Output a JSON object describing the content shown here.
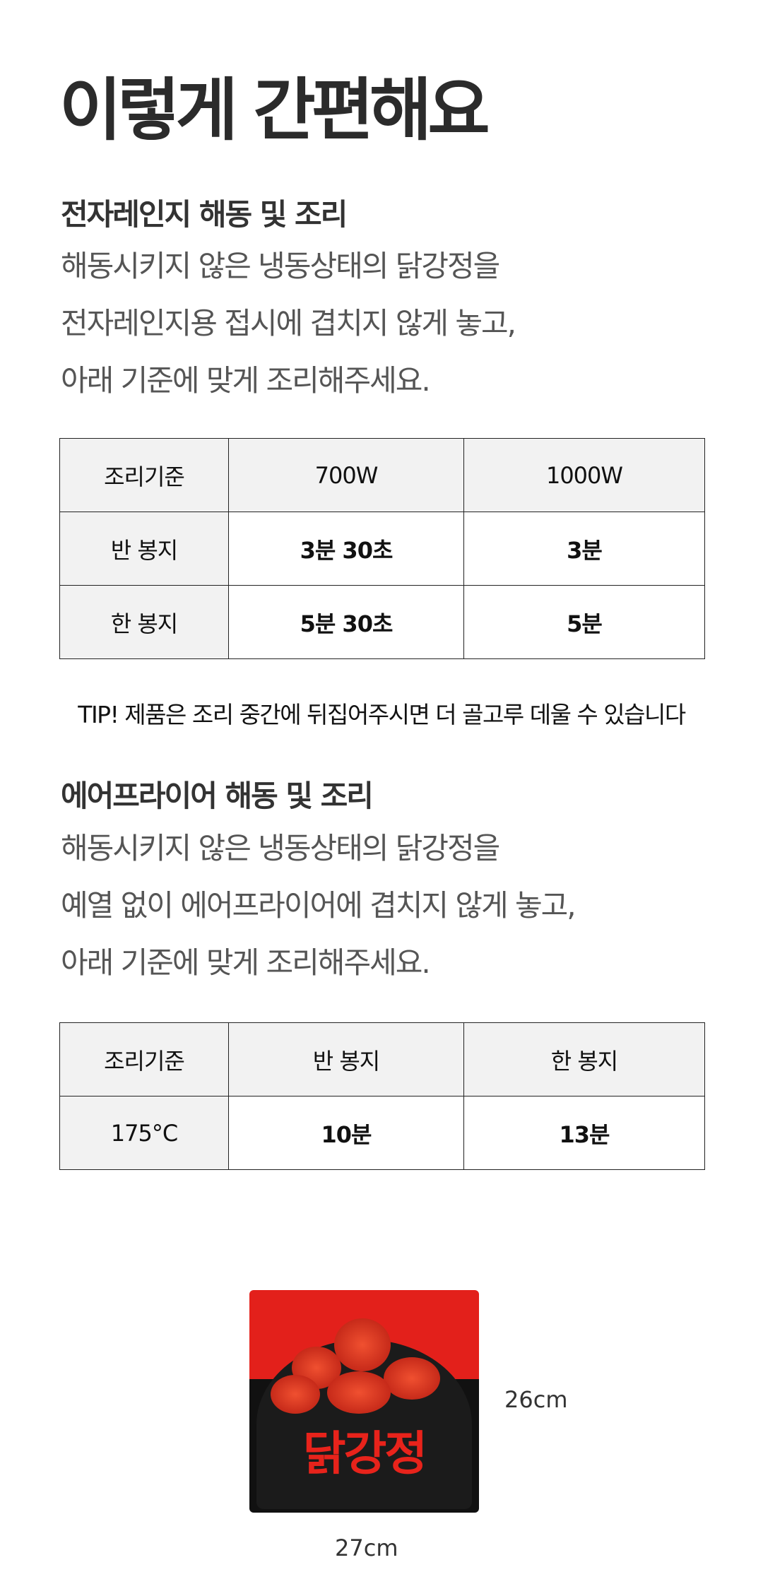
{
  "title": "이렇게 간편해요",
  "microwave": {
    "heading": "전자레인지 해동 및 조리",
    "lines": [
      "해동시키지 않은 냉동상태의 닭강정을",
      "전자레인지용 접시에 겹치지 않게 놓고,",
      "아래 기준에 맞게 조리해주세요."
    ],
    "table": {
      "header": [
        "조리기준",
        "700W",
        "1000W"
      ],
      "rows": [
        [
          "반 봉지",
          "3분 30초",
          "3분"
        ],
        [
          "한 봉지",
          "5분 30초",
          "5분"
        ]
      ]
    }
  },
  "tip": "TIP! 제품은 조리 중간에 뒤집어주시면 더 골고루 데울 수 있습니다",
  "airfryer": {
    "heading": "에어프라이어 해동 및 조리",
    "lines": [
      "해동시키지 않은 냉동상태의 닭강정을",
      "예열 없이 에어프라이어에 겹치지 않게 놓고,",
      "아래 기준에 맞게 조리해주세요."
    ],
    "table": {
      "header": [
        "조리기준",
        "반 봉지",
        "한 봉지"
      ],
      "rows": [
        [
          "175°C",
          "10분",
          "13분"
        ]
      ]
    }
  },
  "product": {
    "logo_text": "닭강정",
    "height": "26cm",
    "width": "27cm"
  }
}
